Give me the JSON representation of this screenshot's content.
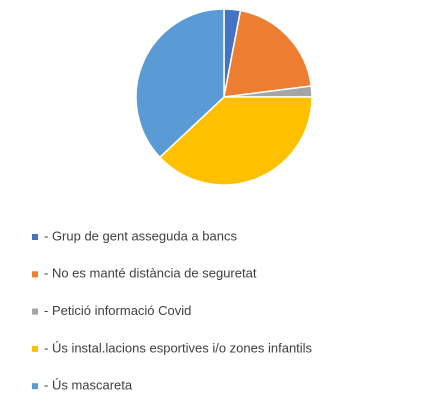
{
  "chart_data": {
    "type": "pie",
    "categories": [
      "- Grup de gent asseguda a bancs",
      "- No es manté distància de seguretat",
      "- Petició informació Covid",
      "- Ús instal.lacions esportives i/o zones infantils",
      "- Ús mascareta"
    ],
    "values": [
      3,
      20,
      2,
      38,
      37
    ],
    "colors": [
      "#4472c4",
      "#ed7d31",
      "#a5a5a5",
      "#ffc000",
      "#5b9bd5"
    ],
    "legend": "bottom"
  }
}
